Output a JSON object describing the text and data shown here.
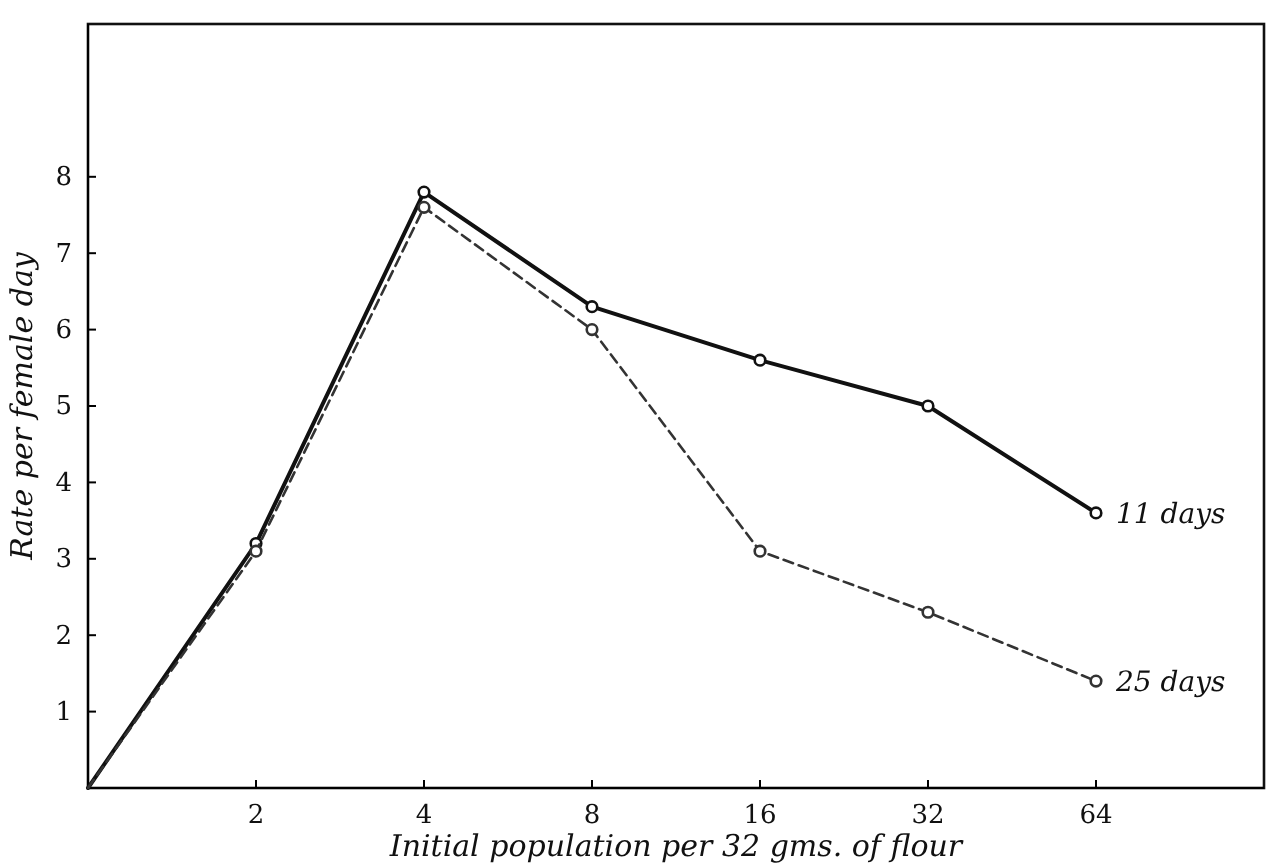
{
  "chart_data": {
    "type": "line",
    "xlabel": "Initial population per 32 gms. of flour",
    "ylabel": "Rate per female day",
    "categories": [
      null,
      "2",
      "4",
      "8",
      "16",
      "32",
      "64"
    ],
    "series": [
      {
        "name": "11 days",
        "color": "#111111",
        "values": [
          0,
          3.2,
          7.8,
          6.3,
          5.6,
          5.0,
          3.6
        ],
        "line_style": "solid",
        "marker": "circle"
      },
      {
        "name": "25 days",
        "color": "#333333",
        "values": [
          0,
          3.1,
          7.6,
          6.0,
          3.1,
          2.3,
          1.4
        ],
        "line_style": "dashed",
        "marker": "circle"
      }
    ],
    "ylim": [
      0,
      10
    ],
    "yticks": [
      1,
      2,
      3,
      4,
      5,
      6,
      7,
      8
    ],
    "grid": false,
    "legend": false
  }
}
